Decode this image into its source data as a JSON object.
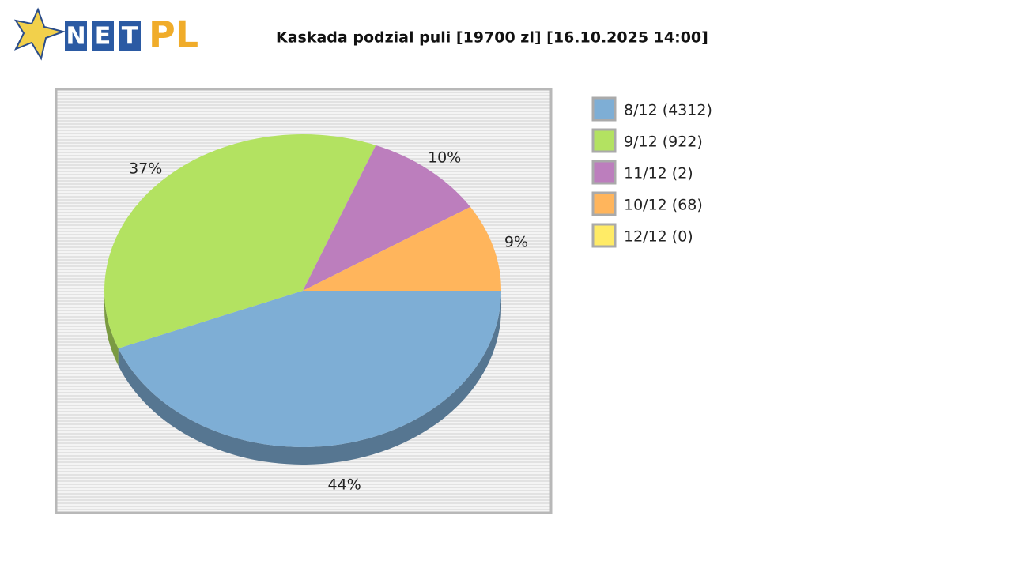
{
  "logo": {
    "letters": [
      "N",
      "E",
      "T"
    ],
    "suffix": "PL"
  },
  "chart_data": {
    "type": "pie",
    "title": "Kaskada podzial puli [19700 zl] [16.10.2025 14:00]",
    "categories": [
      "8/12 (4312)",
      "9/12 (922)",
      "11/12 (2)",
      "10/12 (68)",
      "12/12 (0)"
    ],
    "values": [
      44,
      37,
      10,
      9,
      0
    ],
    "value_labels": [
      "44%",
      "37%",
      "10%",
      "9%",
      null
    ],
    "colors": [
      "#7eaed5",
      "#b3e261",
      "#bc7ebd",
      "#ffb55c",
      "#ffeb66"
    ],
    "legend": "right"
  }
}
